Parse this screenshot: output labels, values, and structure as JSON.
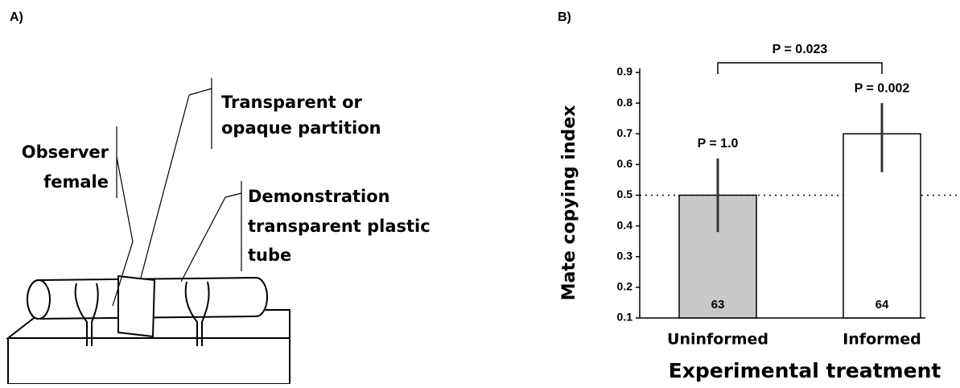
{
  "panels": {
    "a": "A)",
    "b": "B)"
  },
  "diagram": {
    "partition_label": [
      "Transparent or",
      "opaque partition"
    ],
    "observer_label": [
      "Observer",
      "female"
    ],
    "tube_label": [
      "Demonstration",
      "transparent plastic",
      "tube"
    ]
  },
  "chart_data": {
    "type": "bar",
    "categories": [
      "Uninformed",
      "Informed"
    ],
    "values": [
      0.5,
      0.7
    ],
    "error_bars": [
      [
        0.38,
        0.62
      ],
      [
        0.575,
        0.8
      ]
    ],
    "colors": [
      "#c8c8c8",
      "#ffffff"
    ],
    "n": [
      63,
      64
    ],
    "bar_p_values": [
      "P = 1.0",
      "P = 0.002"
    ],
    "comparison_p_value": "P = 0.023",
    "reference_line": 0.5,
    "ylim": [
      0.1,
      0.9
    ],
    "yticks": [
      0.1,
      0.2,
      0.3,
      0.4,
      0.5,
      0.6,
      0.7,
      0.8,
      0.9
    ],
    "ylabel": "Mate copying index",
    "xlabel": "Experimental treatment"
  }
}
